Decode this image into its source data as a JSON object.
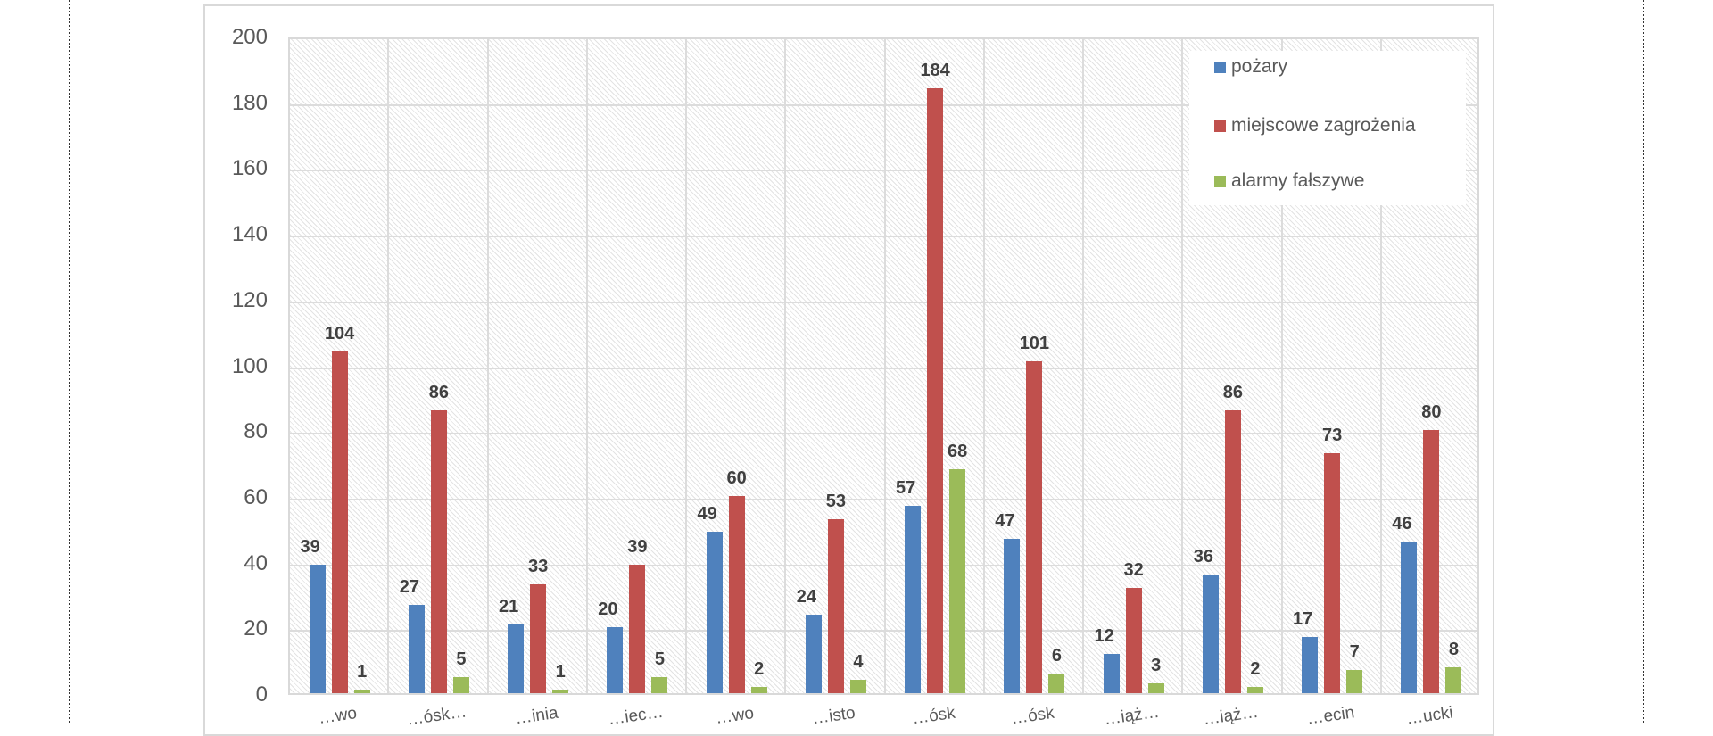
{
  "chart_data": {
    "type": "bar",
    "title": "",
    "xlabel": "",
    "ylabel": "",
    "ylim": [
      0,
      200
    ],
    "yticks": [
      0,
      20,
      40,
      60,
      80,
      100,
      120,
      140,
      160,
      180,
      200
    ],
    "grid": true,
    "legend_position": "top-right (inside plot)",
    "categories": [
      "…wo",
      "…ósk…",
      "…inia",
      "…iec…",
      "…wo",
      "…isto",
      "…ósk",
      "…ósk",
      "…iąż…",
      "…iąż…",
      "…ecin",
      "…ucki"
    ],
    "series": [
      {
        "name": "pożary",
        "color": "#4f81bd",
        "values": [
          39,
          27,
          21,
          20,
          49,
          24,
          57,
          47,
          12,
          36,
          17,
          46
        ]
      },
      {
        "name": "miejscowe zagrożenia",
        "color": "#c0504d",
        "values": [
          104,
          86,
          33,
          39,
          60,
          53,
          184,
          101,
          32,
          86,
          73,
          80
        ]
      },
      {
        "name": "alarmy fałszywe",
        "color": "#9bbb59",
        "values": [
          1,
          5,
          1,
          5,
          2,
          4,
          68,
          6,
          3,
          2,
          7,
          8
        ]
      }
    ]
  },
  "legend": {
    "items": [
      {
        "label": "pożary",
        "color": "#4f81bd"
      },
      {
        "label": "miejscowe zagrożenia",
        "color": "#c0504d"
      },
      {
        "label": "alarmy fałszywe",
        "color": "#9bbb59"
      }
    ]
  }
}
